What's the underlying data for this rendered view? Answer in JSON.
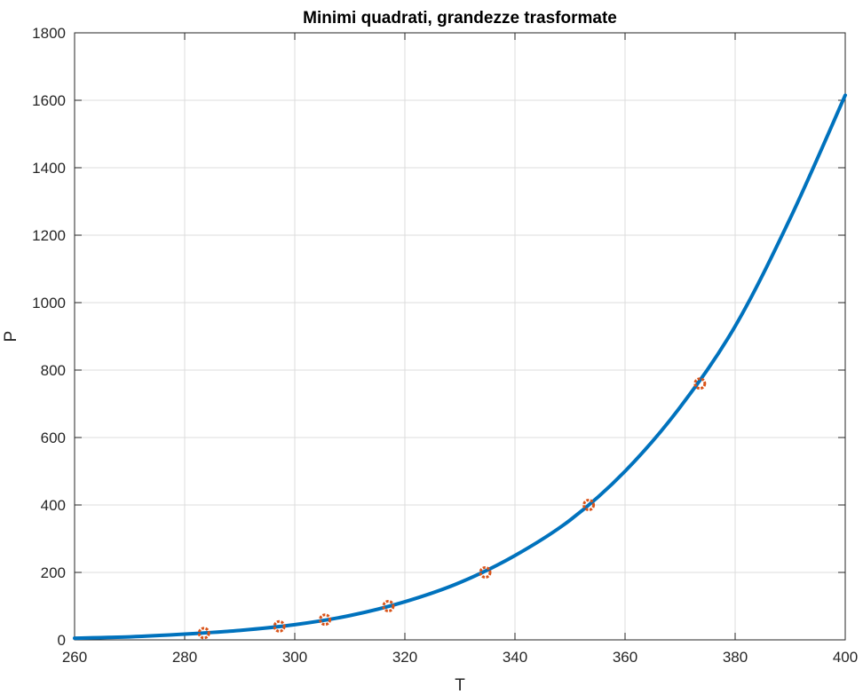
{
  "chart_data": {
    "type": "line",
    "title": "Minimi quadrati, grandezze trasformate",
    "xlabel": "T",
    "ylabel": "P",
    "xlim": [
      260,
      400
    ],
    "ylim": [
      0,
      1800
    ],
    "xticks": [
      260,
      280,
      300,
      320,
      340,
      360,
      380,
      400
    ],
    "yticks": [
      0,
      200,
      400,
      600,
      800,
      1000,
      1200,
      1400,
      1600,
      1800
    ],
    "grid": true,
    "series": [
      {
        "kind": "line",
        "color": "#0072BD",
        "fit_curve": [
          [
            260,
            5
          ],
          [
            270,
            9
          ],
          [
            280,
            17
          ],
          [
            290,
            28
          ],
          [
            300,
            45
          ],
          [
            310,
            72
          ],
          [
            320,
            113
          ],
          [
            330,
            170
          ],
          [
            340,
            250
          ],
          [
            350,
            355
          ],
          [
            360,
            500
          ],
          [
            370,
            690
          ],
          [
            380,
            930
          ],
          [
            390,
            1250
          ],
          [
            400,
            1615
          ]
        ]
      },
      {
        "kind": "scatter",
        "color": "#D95319",
        "marker": "circle",
        "points": [
          [
            283.5,
            20
          ],
          [
            297.2,
            40
          ],
          [
            305.5,
            60
          ],
          [
            317.0,
            100
          ],
          [
            334.6,
            200
          ],
          [
            353.4,
            400
          ],
          [
            373.6,
            760
          ]
        ]
      }
    ]
  }
}
